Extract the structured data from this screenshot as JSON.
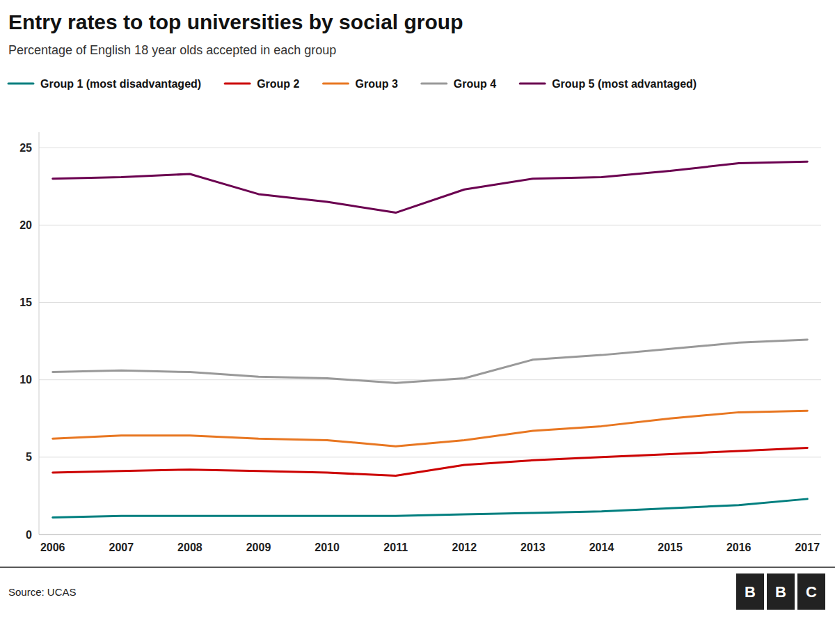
{
  "chart_data": {
    "type": "line",
    "title": "Entry rates to top universities by social group",
    "subtitle": "Percentage of English 18 year olds accepted in each group",
    "annotations": [
      "Source: UCAS",
      "BBC"
    ],
    "x": [
      2006,
      2007,
      2008,
      2009,
      2010,
      2011,
      2012,
      2013,
      2014,
      2015,
      2016,
      2017
    ],
    "xlim": [
      2005.8,
      2017.2
    ],
    "xticks": [
      2006,
      2007,
      2008,
      2009,
      2010,
      2011,
      2012,
      2013,
      2014,
      2015,
      2016,
      2017
    ],
    "series": [
      {
        "name": "Group 1 (most disadvantaged)",
        "color": "#007f7f",
        "values": [
          1.1,
          1.2,
          1.2,
          1.2,
          1.2,
          1.2,
          1.3,
          1.4,
          1.5,
          1.7,
          1.9,
          2.3
        ]
      },
      {
        "name": "Group 2",
        "color": "#cc0000",
        "values": [
          4.0,
          4.1,
          4.2,
          4.1,
          4.0,
          3.8,
          4.5,
          4.8,
          5.0,
          5.2,
          5.4,
          5.6
        ]
      },
      {
        "name": "Group 3",
        "color": "#e87722",
        "values": [
          6.2,
          6.4,
          6.4,
          6.2,
          6.1,
          5.7,
          6.1,
          6.7,
          7.0,
          7.5,
          7.9,
          8.0
        ]
      },
      {
        "name": "Group 4",
        "color": "#999999",
        "values": [
          10.5,
          10.6,
          10.5,
          10.2,
          10.1,
          9.8,
          10.1,
          11.3,
          11.6,
          12.0,
          12.4,
          12.6
        ]
      },
      {
        "name": "Group 5 (most advantaged)",
        "color": "#6b0050",
        "values": [
          23.0,
          23.1,
          23.3,
          22.0,
          21.5,
          20.8,
          22.3,
          23.0,
          23.1,
          23.5,
          24.0,
          24.1
        ]
      }
    ],
    "ylim": [
      0,
      26
    ],
    "yticks": [
      0,
      5,
      10,
      15,
      20,
      25
    ],
    "grid": true,
    "legend": "top"
  }
}
